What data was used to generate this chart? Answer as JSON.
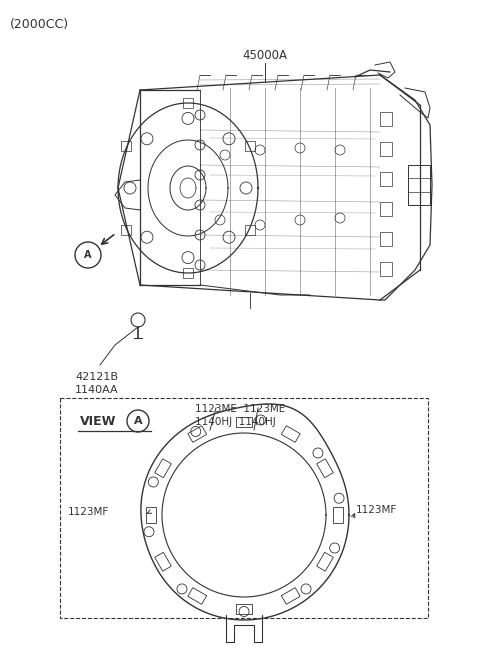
{
  "bg_color": "#ffffff",
  "line_color": "#333333",
  "title": "(2000CC)",
  "label_45000A": "45000A",
  "label_42121B": "42121B",
  "label_1140AA": "1140AA",
  "label_view": "VIEW",
  "label_A": "A",
  "label_1123ME_1": "1123ME",
  "label_1123ME_2": "1123ME",
  "label_1140HJ_1": "1140HJ",
  "label_1140HJ_2": "1140HJ",
  "label_1123MF_L": "1123MF",
  "label_1123MF_R": "1123MF",
  "fig_w": 4.8,
  "fig_h": 6.55,
  "dpi": 100
}
